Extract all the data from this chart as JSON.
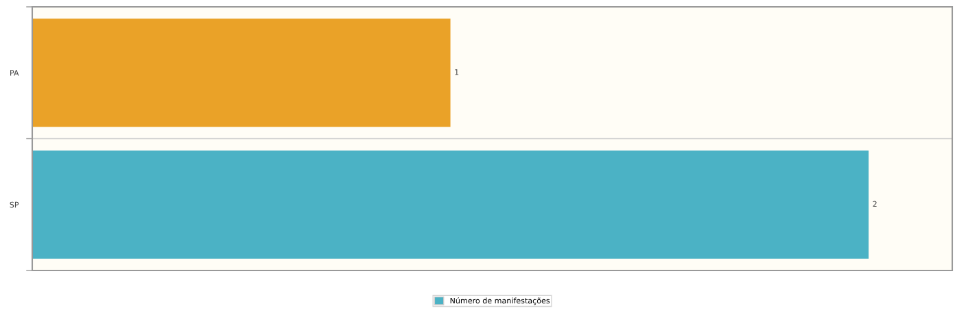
{
  "chart_data": {
    "type": "bar",
    "orientation": "horizontal",
    "categories": [
      "PA",
      "SP"
    ],
    "series": [
      {
        "name": "Número de manifestações",
        "color": "#4bb2c5",
        "colors": [
          "#eaa228",
          "#4bb2c5"
        ],
        "values": [
          1,
          2
        ]
      }
    ],
    "xlim": [
      0,
      2.2
    ],
    "data_labels": true,
    "grid": "y",
    "legend": "bottom",
    "tick_labels": "y"
  }
}
